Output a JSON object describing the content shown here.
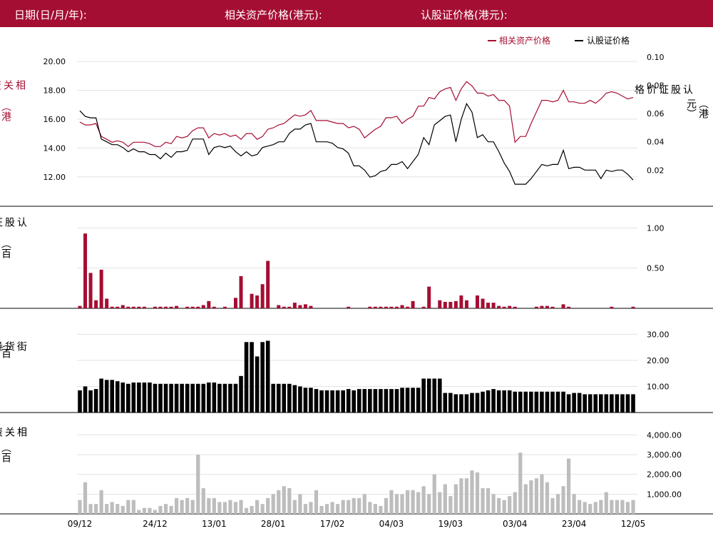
{
  "header": {
    "date_label": "日期(日/月/年):",
    "underlying_label": "相关资产价格(港元):",
    "warrant_label": "认股证价格(港元):"
  },
  "colors": {
    "brand": "#a50e33",
    "warrant": "#000000",
    "turnover_underlying": "#bdbdbd"
  },
  "axis_labels": {
    "price_left": "相关资产价格",
    "price_left_unit": "（港元）",
    "price_right": "认股证价格",
    "price_right_unit": "（港元）",
    "warrant_turnover": "认股证成交额",
    "warrant_turnover_unit": "（百万）",
    "outstanding": "街货量",
    "outstanding_unit": "（百万份）",
    "underlying_turnover": "相关资产成交额",
    "underlying_turnover_unit": "（百万）"
  },
  "chart_data": [
    {
      "type": "line",
      "name": "price",
      "legend": [
        "相关资产价格",
        "认股证价格"
      ],
      "legend_position": "top-right",
      "grid": true,
      "ylim_left": [
        11,
        20.3
      ],
      "ylim_right": [
        0.005,
        0.1
      ],
      "yticks_left": [
        "20.00",
        "18.00",
        "16.00",
        "14.00",
        "12.00"
      ],
      "yticks_right": [
        "0.10",
        "0.08",
        "0.06",
        "0.04",
        "0.02"
      ],
      "series": [
        {
          "name": "相关资产价格",
          "axis": "left",
          "values": [
            15.8,
            15.6,
            15.6,
            15.7,
            14.8,
            14.6,
            14.4,
            14.5,
            14.4,
            14.1,
            14.4,
            14.4,
            14.4,
            14.3,
            14.1,
            14.1,
            14.4,
            14.3,
            14.8,
            14.7,
            14.8,
            15.2,
            15.4,
            15.4,
            14.7,
            15.0,
            14.9,
            15.0,
            14.8,
            14.9,
            14.6,
            15.0,
            15.0,
            14.6,
            14.8,
            15.3,
            15.4,
            15.6,
            15.7,
            16.0,
            16.3,
            16.2,
            16.3,
            16.6,
            15.9,
            15.9,
            15.9,
            15.8,
            15.7,
            15.7,
            15.4,
            15.5,
            15.3,
            14.7,
            15.0,
            15.3,
            15.5,
            16.1,
            16.1,
            16.2,
            15.7,
            16.0,
            16.2,
            16.9,
            16.9,
            17.5,
            17.4,
            17.9,
            18.1,
            18.2,
            17.3,
            18.1,
            18.6,
            18.3,
            17.8,
            17.8,
            17.6,
            17.7,
            17.3,
            17.3,
            16.9,
            14.4,
            14.8,
            14.8,
            15.7,
            16.5,
            17.3,
            17.3,
            17.2,
            17.3,
            18.0,
            17.2,
            17.2,
            17.1,
            17.1,
            17.3,
            17.1,
            17.4,
            17.8,
            17.9,
            17.8,
            17.6,
            17.4,
            17.5
          ]
        },
        {
          "name": "认股证价格",
          "axis": "right",
          "values": [
            0.062,
            0.058,
            0.057,
            0.057,
            0.042,
            0.04,
            0.038,
            0.038,
            0.036,
            0.033,
            0.035,
            0.033,
            0.033,
            0.031,
            0.031,
            0.028,
            0.032,
            0.029,
            0.033,
            0.033,
            0.034,
            0.042,
            0.042,
            0.042,
            0.031,
            0.036,
            0.037,
            0.036,
            0.037,
            0.033,
            0.03,
            0.033,
            0.03,
            0.031,
            0.036,
            0.037,
            0.038,
            0.04,
            0.04,
            0.046,
            0.049,
            0.049,
            0.052,
            0.053,
            0.04,
            0.04,
            0.04,
            0.039,
            0.036,
            0.035,
            0.032,
            0.023,
            0.023,
            0.02,
            0.015,
            0.016,
            0.019,
            0.02,
            0.024,
            0.024,
            0.026,
            0.021,
            0.026,
            0.031,
            0.043,
            0.038,
            0.052,
            0.055,
            0.058,
            0.059,
            0.04,
            0.056,
            0.067,
            0.061,
            0.043,
            0.045,
            0.04,
            0.04,
            0.033,
            0.025,
            0.019,
            0.01,
            0.01,
            0.01,
            0.014,
            0.019,
            0.024,
            0.023,
            0.024,
            0.024,
            0.034,
            0.021,
            0.022,
            0.022,
            0.02,
            0.02,
            0.02,
            0.014,
            0.02,
            0.019,
            0.02,
            0.02,
            0.017,
            0.013
          ]
        }
      ]
    },
    {
      "type": "bar",
      "name": "warrant_turnover",
      "ylim": [
        0,
        1.1
      ],
      "yticks": [
        "1.00",
        "0.50"
      ],
      "values": [
        0.03,
        0.93,
        0.44,
        0.1,
        0.48,
        0.12,
        0.02,
        0.02,
        0.04,
        0.02,
        0.02,
        0.02,
        0.02,
        0.0,
        0.02,
        0.02,
        0.02,
        0.02,
        0.03,
        0.0,
        0.02,
        0.02,
        0.02,
        0.04,
        0.09,
        0.02,
        0.0,
        0.02,
        0.0,
        0.13,
        0.4,
        0.0,
        0.18,
        0.16,
        0.3,
        0.59,
        0.0,
        0.04,
        0.02,
        0.02,
        0.07,
        0.04,
        0.05,
        0.03,
        0.0,
        0.0,
        0.0,
        0.0,
        0.0,
        0.0,
        0.02,
        0.0,
        0.0,
        0.0,
        0.02,
        0.02,
        0.02,
        0.02,
        0.02,
        0.02,
        0.04,
        0.02,
        0.09,
        0.0,
        0.02,
        0.27,
        0.0,
        0.1,
        0.08,
        0.08,
        0.09,
        0.16,
        0.1,
        0.0,
        0.16,
        0.12,
        0.07,
        0.07,
        0.03,
        0.02,
        0.03,
        0.02,
        0.0,
        0.0,
        0.0,
        0.02,
        0.03,
        0.03,
        0.02,
        0.0,
        0.05,
        0.02,
        0.0,
        0.0,
        0.0,
        0.0,
        0.0,
        0.0,
        0.0,
        0.02,
        0.0,
        0.0,
        0.0,
        0.02
      ]
    },
    {
      "type": "bar",
      "name": "outstanding",
      "ylim": [
        0,
        32
      ],
      "yticks": [
        "30.00",
        "20.00",
        "10.00"
      ],
      "values": [
        8.5,
        10.0,
        8.5,
        9.0,
        13.0,
        12.5,
        12.5,
        12.0,
        11.5,
        11.0,
        11.5,
        11.5,
        11.5,
        11.5,
        11.0,
        11.0,
        11.0,
        11.0,
        11.0,
        11.0,
        11.0,
        11.0,
        11.0,
        11.0,
        11.5,
        11.5,
        11.0,
        11.0,
        11.0,
        11.0,
        14.0,
        27.0,
        27.0,
        21.5,
        27.0,
        27.5,
        11.0,
        11.0,
        11.0,
        11.0,
        10.5,
        10.0,
        9.5,
        9.5,
        9.0,
        8.5,
        8.5,
        8.5,
        8.5,
        8.5,
        9.0,
        8.5,
        9.0,
        9.0,
        9.0,
        9.0,
        9.0,
        9.0,
        9.0,
        9.0,
        9.5,
        9.5,
        9.5,
        9.5,
        13.0,
        13.0,
        13.0,
        13.0,
        7.5,
        7.5,
        7.0,
        7.0,
        7.0,
        7.5,
        7.5,
        8.0,
        8.5,
        9.0,
        8.5,
        8.5,
        8.5,
        8.0,
        8.0,
        8.0,
        8.0,
        8.0,
        8.0,
        8.0,
        8.0,
        8.0,
        8.0,
        7.0,
        7.5,
        7.5,
        7.0,
        7.0,
        7.0,
        7.0,
        7.0,
        7.0,
        7.0,
        7.0,
        7.0,
        7.0
      ]
    },
    {
      "type": "bar",
      "name": "underlying_turnover",
      "ylim": [
        0,
        4300
      ],
      "yticks": [
        "4,000.00",
        "3,000.00",
        "2,000.00",
        "1,000.00"
      ],
      "xticks": [
        "09/12",
        "24/12",
        "13/01",
        "28/01",
        "17/02",
        "04/03",
        "19/03",
        "03/04",
        "23/04",
        "12/05"
      ],
      "values": [
        700,
        1600,
        500,
        500,
        1200,
        500,
        600,
        500,
        400,
        700,
        700,
        200,
        300,
        300,
        200,
        400,
        500,
        400,
        800,
        700,
        800,
        700,
        3000,
        1300,
        800,
        800,
        600,
        600,
        700,
        600,
        700,
        300,
        400,
        700,
        500,
        800,
        1000,
        1200,
        1400,
        1300,
        700,
        1000,
        500,
        600,
        1200,
        400,
        500,
        600,
        500,
        700,
        700,
        800,
        800,
        1000,
        600,
        500,
        400,
        800,
        1200,
        1000,
        1000,
        1200,
        1200,
        1100,
        1400,
        1000,
        2000,
        1100,
        1500,
        900,
        1500,
        1800,
        1800,
        2200,
        2100,
        1300,
        1300,
        1000,
        800,
        700,
        900,
        1100,
        3100,
        1500,
        1700,
        1800,
        2000,
        1600,
        800,
        1000,
        1400,
        2800,
        1000,
        700,
        600,
        500,
        600,
        700,
        1100,
        700,
        700,
        700,
        600,
        700
      ]
    }
  ]
}
